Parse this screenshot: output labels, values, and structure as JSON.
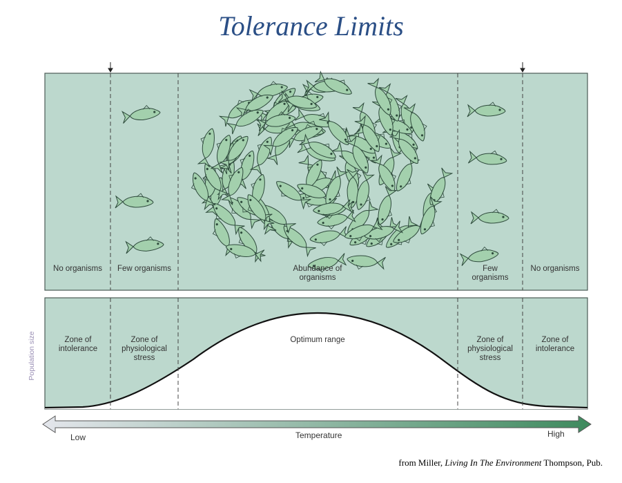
{
  "title": "Tolerance Limits",
  "top_zones": [
    "No organisms",
    "Few organisms",
    "Abundance of organisms",
    "Few organisms",
    "No organisms"
  ],
  "bottom_zones": [
    "Zone of intolerance",
    "Zone of physiological stress",
    "Optimum range",
    "Zone of physiological stress",
    "Zone of intolerance"
  ],
  "y_axis_label": "Population size",
  "x_axis": {
    "low": "Low",
    "label": "Temperature",
    "high": "High"
  },
  "credit": {
    "prefix": "from Miller, ",
    "book": "Living In The Environment",
    "suffix": " Thompson, Pub."
  }
}
